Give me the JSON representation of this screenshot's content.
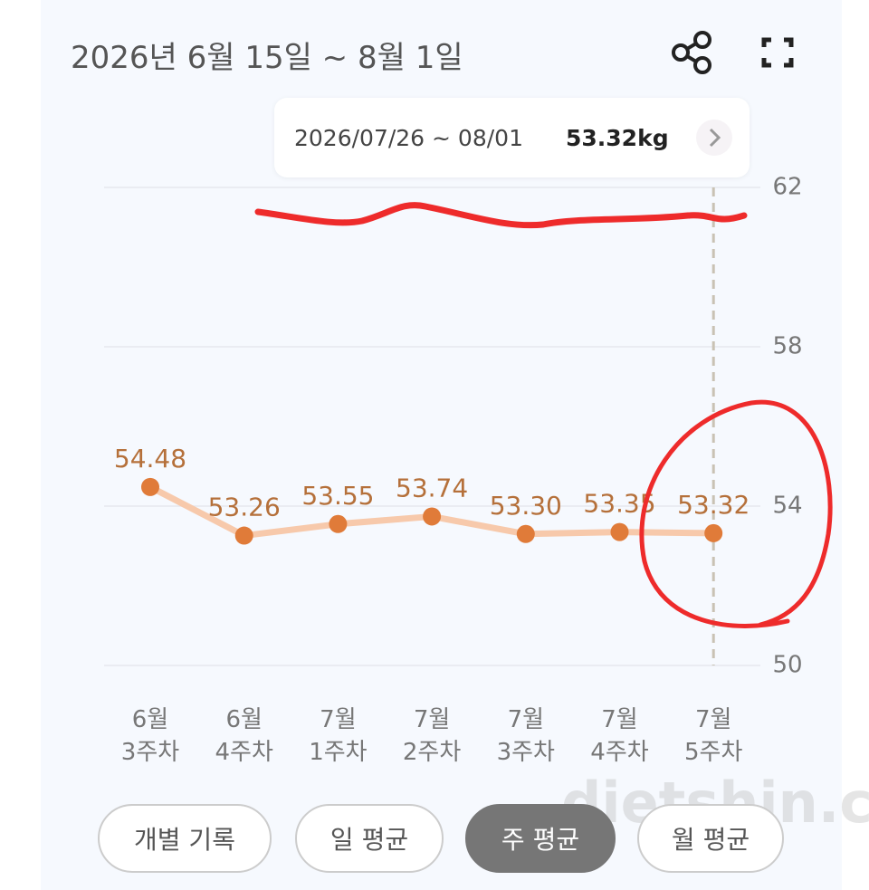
{
  "header": {
    "title": "2026년 6월 15일 ~ 8월 1일"
  },
  "tooltip": {
    "range": "2026/07/26 ~ 08/01",
    "value": "53.32kg"
  },
  "chart_data": {
    "type": "line",
    "categories": [
      "6월\n3주차",
      "6월\n4주차",
      "7월\n1주차",
      "7월\n2주차",
      "7월\n3주차",
      "7월\n4주차",
      "7월\n5주차"
    ],
    "values": [
      54.48,
      53.26,
      53.55,
      53.74,
      53.3,
      53.35,
      53.32
    ],
    "value_labels": [
      "54.48",
      "53.26",
      "53.55",
      "53.74",
      "53.30",
      "53.35",
      "53.32"
    ],
    "line_color": "#f7c9ab",
    "point_color": "#e07b39",
    "label_color": "#b5703a",
    "ylim": [
      50,
      62
    ],
    "yticks": [
      50,
      54,
      58,
      62
    ],
    "grid": true
  },
  "tabs": [
    "개별 기록",
    "일 평균",
    "주 평균",
    "월 평균"
  ],
  "watermark": "dietshin.com"
}
